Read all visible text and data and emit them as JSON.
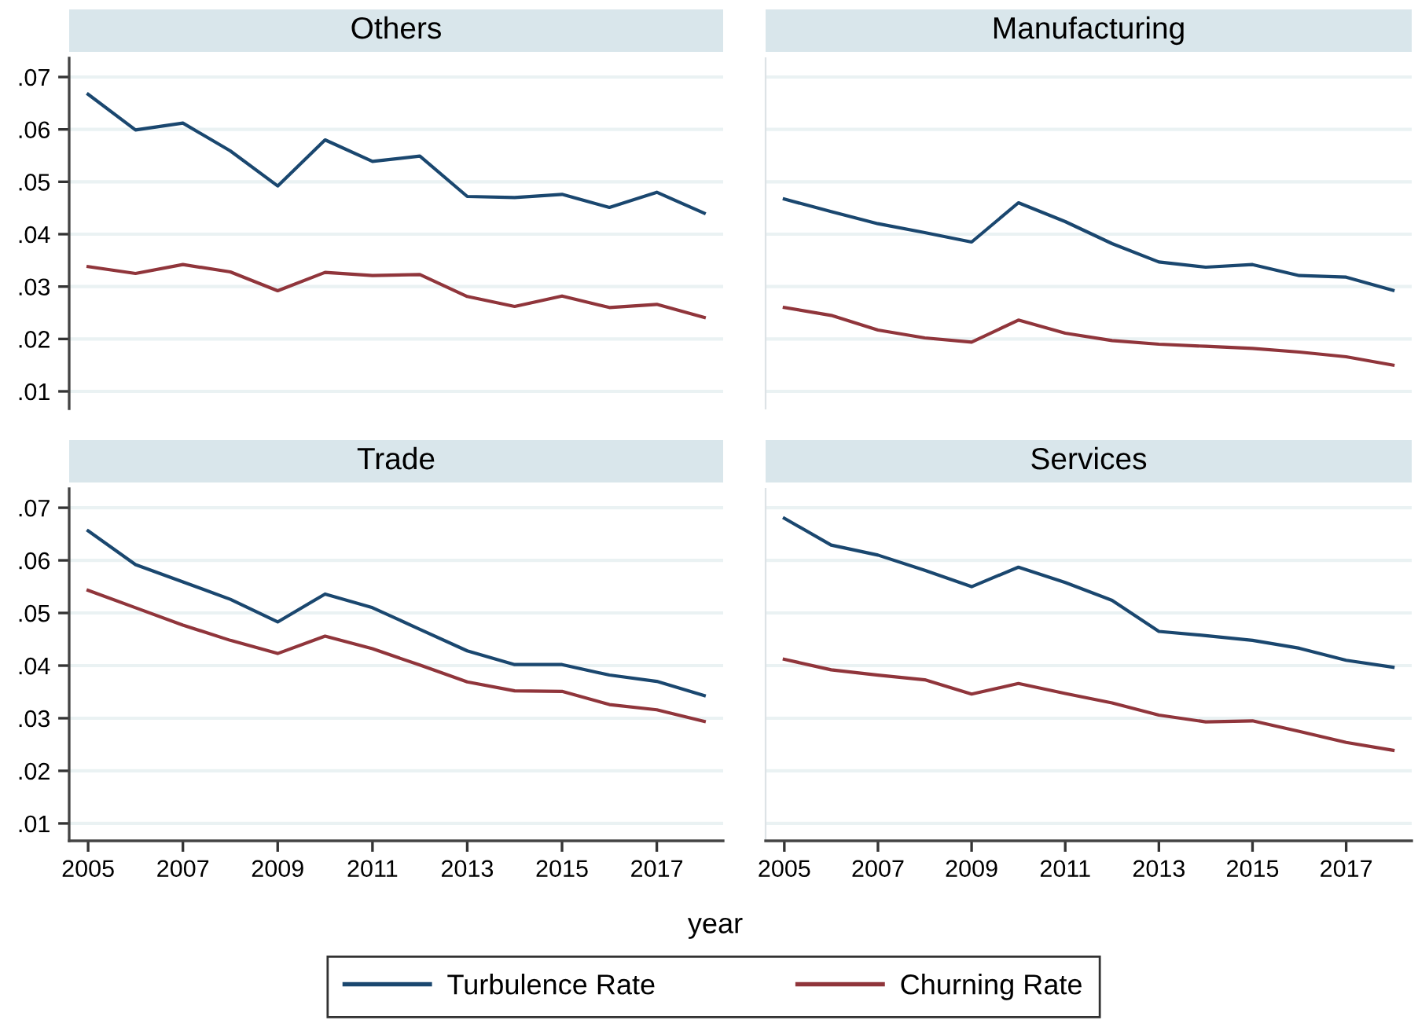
{
  "chart_data": [
    {
      "type": "line",
      "title": "Others",
      "x": [
        2005,
        2006,
        2007,
        2008,
        2009,
        2010,
        2011,
        2012,
        2013,
        2014,
        2015,
        2016,
        2017,
        2018
      ],
      "xlim": [
        2004.6,
        2018.4
      ],
      "ylim": [
        0.0067,
        0.0736
      ],
      "yticks": [
        {
          "value": 0.01,
          "label": ".01"
        },
        {
          "value": 0.02,
          "label": ".02"
        },
        {
          "value": 0.03,
          "label": ".03"
        },
        {
          "value": 0.04,
          "label": ".04"
        },
        {
          "value": 0.05,
          "label": ".05"
        },
        {
          "value": 0.06,
          "label": ".06"
        },
        {
          "value": 0.07,
          "label": ".07"
        }
      ],
      "tick_labels": "y",
      "grid": "y",
      "marker": "none",
      "line_style": "solid",
      "series": [
        {
          "color": "#1a476f",
          "values": [
            0.0667,
            0.0599,
            0.0612,
            0.0559,
            0.0492,
            0.058,
            0.0539,
            0.0549,
            0.0472,
            0.047,
            0.0476,
            0.0451,
            0.048,
            0.044
          ]
        },
        {
          "color": "#90353b",
          "values": [
            0.0338,
            0.0325,
            0.0342,
            0.0328,
            0.0292,
            0.0327,
            0.0321,
            0.0323,
            0.0281,
            0.0262,
            0.0282,
            0.026,
            0.0266,
            0.0241
          ]
        }
      ]
    },
    {
      "type": "line",
      "title": "Manufacturing",
      "x": [
        2005,
        2006,
        2007,
        2008,
        2009,
        2010,
        2011,
        2012,
        2013,
        2014,
        2015,
        2016,
        2017,
        2018
      ],
      "xlim": [
        2004.6,
        2018.4
      ],
      "ylim": [
        0.0067,
        0.0736
      ],
      "yticks": [
        {
          "value": 0.01,
          "label": null
        },
        {
          "value": 0.02,
          "label": null
        },
        {
          "value": 0.03,
          "label": null
        },
        {
          "value": 0.04,
          "label": null
        },
        {
          "value": 0.05,
          "label": null
        },
        {
          "value": 0.06,
          "label": null
        },
        {
          "value": 0.07,
          "label": null
        }
      ],
      "tick_labels": false,
      "grid": "y",
      "marker": "none",
      "line_style": "solid",
      "series": [
        {
          "color": "#1a476f",
          "values": [
            0.0467,
            0.0443,
            0.042,
            0.0403,
            0.0385,
            0.046,
            0.0424,
            0.0382,
            0.0347,
            0.0337,
            0.0342,
            0.0321,
            0.0318,
            0.0293
          ]
        },
        {
          "color": "#90353b",
          "values": [
            0.026,
            0.0245,
            0.0217,
            0.0202,
            0.0194,
            0.0236,
            0.0211,
            0.0197,
            0.019,
            0.0186,
            0.0182,
            0.0175,
            0.0166,
            0.015
          ]
        }
      ]
    },
    {
      "type": "line",
      "title": "Trade",
      "x": [
        2005,
        2006,
        2007,
        2008,
        2009,
        2010,
        2011,
        2012,
        2013,
        2014,
        2015,
        2016,
        2017,
        2018
      ],
      "xlim": [
        2004.6,
        2018.4
      ],
      "ylim": [
        0.0067,
        0.0736
      ],
      "xticks": [
        2005,
        2007,
        2009,
        2011,
        2013,
        2015,
        2017
      ],
      "yticks": [
        {
          "value": 0.01,
          "label": ".01"
        },
        {
          "value": 0.02,
          "label": ".02"
        },
        {
          "value": 0.03,
          "label": ".03"
        },
        {
          "value": 0.04,
          "label": ".04"
        },
        {
          "value": 0.05,
          "label": ".05"
        },
        {
          "value": 0.06,
          "label": ".06"
        },
        {
          "value": 0.07,
          "label": ".07"
        }
      ],
      "grid": "y",
      "marker": "none",
      "line_style": "solid",
      "series": [
        {
          "color": "#1a476f",
          "values": [
            0.0656,
            0.0592,
            0.0559,
            0.0526,
            0.0483,
            0.0536,
            0.051,
            0.0469,
            0.0428,
            0.0402,
            0.0402,
            0.0382,
            0.037,
            0.0343
          ]
        },
        {
          "color": "#90353b",
          "values": [
            0.0543,
            0.051,
            0.0477,
            0.0448,
            0.0423,
            0.0456,
            0.0432,
            0.0401,
            0.0369,
            0.0352,
            0.0351,
            0.0326,
            0.0316,
            0.0294
          ]
        }
      ]
    },
    {
      "type": "line",
      "title": "Services",
      "xlabel": "year",
      "legend": "bottom",
      "x": [
        2005,
        2006,
        2007,
        2008,
        2009,
        2010,
        2011,
        2012,
        2013,
        2014,
        2015,
        2016,
        2017,
        2018
      ],
      "xlim": [
        2004.6,
        2018.4
      ],
      "xticks": [
        2005,
        2007,
        2009,
        2011,
        2013,
        2015,
        2017
      ],
      "ylim": [
        0.0067,
        0.0736
      ],
      "yticks": [
        {
          "value": 0.01,
          "label": null
        },
        {
          "value": 0.02,
          "label": null
        },
        {
          "value": 0.03,
          "label": null
        },
        {
          "value": 0.04,
          "label": null
        },
        {
          "value": 0.05,
          "label": null
        },
        {
          "value": 0.06,
          "label": null
        },
        {
          "value": 0.07,
          "label": null
        }
      ],
      "tick_labels": "x",
      "grid": "y",
      "marker": "none",
      "line_style": "solid",
      "series": [
        {
          "name": "Turbulence Rate",
          "color": "#1a476f",
          "values": [
            0.068,
            0.0629,
            0.061,
            0.0581,
            0.055,
            0.0587,
            0.0558,
            0.0524,
            0.0465,
            0.0457,
            0.0448,
            0.0433,
            0.041,
            0.0397
          ]
        },
        {
          "name": "Churning Rate",
          "color": "#90353b",
          "values": [
            0.0412,
            0.0392,
            0.0382,
            0.0373,
            0.0346,
            0.0366,
            0.0347,
            0.0329,
            0.0306,
            0.0293,
            0.0295,
            0.0275,
            0.0254,
            0.0239
          ]
        }
      ]
    }
  ]
}
